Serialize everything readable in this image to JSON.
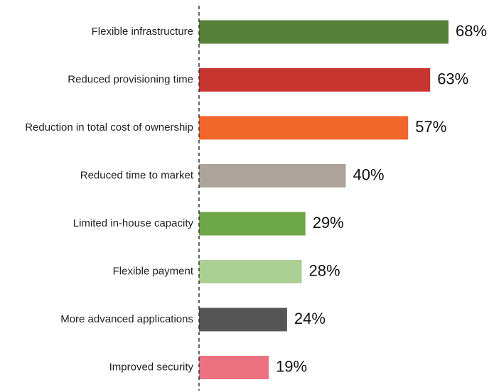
{
  "chart_data": {
    "type": "bar",
    "orientation": "horizontal",
    "categories": [
      "Flexible infrastructure",
      "Reduced provisioning time",
      "Reduction in total cost of ownership",
      "Reduced time to market",
      "Limited in-house capacity",
      "Flexible payment",
      "More advanced applications",
      "Improved security"
    ],
    "values": [
      68,
      63,
      57,
      40,
      29,
      28,
      24,
      19
    ],
    "value_labels": [
      "68%",
      "63%",
      "57%",
      "40%",
      "29%",
      "28%",
      "24%",
      "19%"
    ],
    "colors": [
      "#56813a",
      "#c73530",
      "#f1672b",
      "#aca49b",
      "#6ea64a",
      "#acd093",
      "#555555",
      "#ec7181"
    ],
    "xlim": [
      0,
      68
    ],
    "baseline_style": "dashed",
    "grid": false,
    "title": "",
    "xlabel": "",
    "ylabel": ""
  }
}
